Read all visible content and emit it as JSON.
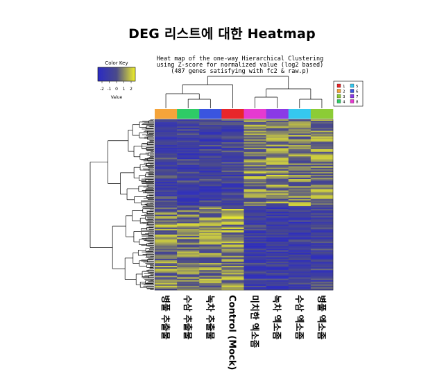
{
  "page_title": "DEG 리스트에 대한 Heatmap",
  "chart_data": {
    "type": "heatmap",
    "title_lines": [
      "Heat map of the one-way Hierarchical Clustering",
      "using Z-score for normalized value (log2 based)",
      "(487 genes satisfying with fc2 & raw.p)"
    ],
    "gene_count": 487,
    "color_key": {
      "title": "Color Key",
      "ticks": [
        "-2",
        "-1",
        "0",
        "1",
        "2"
      ],
      "axis_label": "Value",
      "low_color": "#2b2bc4",
      "mid_color": "#4a4a8a",
      "high_color": "#f0f02a"
    },
    "columns": [
      {
        "label": "병풀 추출물",
        "group": "2",
        "color": "#f5a43a"
      },
      {
        "label": "수삼 추출물",
        "group": "4",
        "color": "#2ecb66"
      },
      {
        "label": "녹차 추출물",
        "group": "6",
        "color": "#3a55e0"
      },
      {
        "label": "Control (Mock)",
        "group": "1",
        "color": "#e8262b"
      },
      {
        "label": "미치한 엑소좀",
        "group": "8",
        "color": "#e63ad0"
      },
      {
        "label": "녹차 엑소좀",
        "group": "7",
        "color": "#8a3ae6"
      },
      {
        "label": "수삼 엑소좀",
        "group": "5",
        "color": "#35c8ef"
      },
      {
        "label": "병풀 엑소좀",
        "group": "3",
        "color": "#8ccc36"
      }
    ],
    "legend": [
      {
        "label": "1",
        "color": "#e8262b"
      },
      {
        "label": "5",
        "color": "#35c8ef"
      },
      {
        "label": "2",
        "color": "#f5a43a"
      },
      {
        "label": "6",
        "color": "#3a55e0"
      },
      {
        "label": "3",
        "color": "#8ccc36"
      },
      {
        "label": "7",
        "color": "#8a3ae6"
      },
      {
        "label": "4",
        "color": "#2ecb66"
      },
      {
        "label": "8",
        "color": "#e63ad0"
      }
    ],
    "column_dendrogram": "((병풀 추출물,(수삼 추출물,녹차 추출물)),Control (Mock)),((미치한 엑소좀,녹차 엑소좀),(수삼 엑소좀,병풀 엑소좀))",
    "row_clusters": [
      {
        "name": "upper",
        "fraction_of_genes": 0.51,
        "mean_z_by_column": [
          -0.6,
          -0.7,
          -0.7,
          -0.6,
          0.6,
          0.7,
          0.6,
          0.6
        ]
      },
      {
        "name": "lower",
        "fraction_of_genes": 0.49,
        "mean_z_by_column": [
          0.6,
          0.6,
          0.6,
          0.9,
          -0.8,
          -0.8,
          -0.8,
          -0.6
        ]
      }
    ]
  }
}
